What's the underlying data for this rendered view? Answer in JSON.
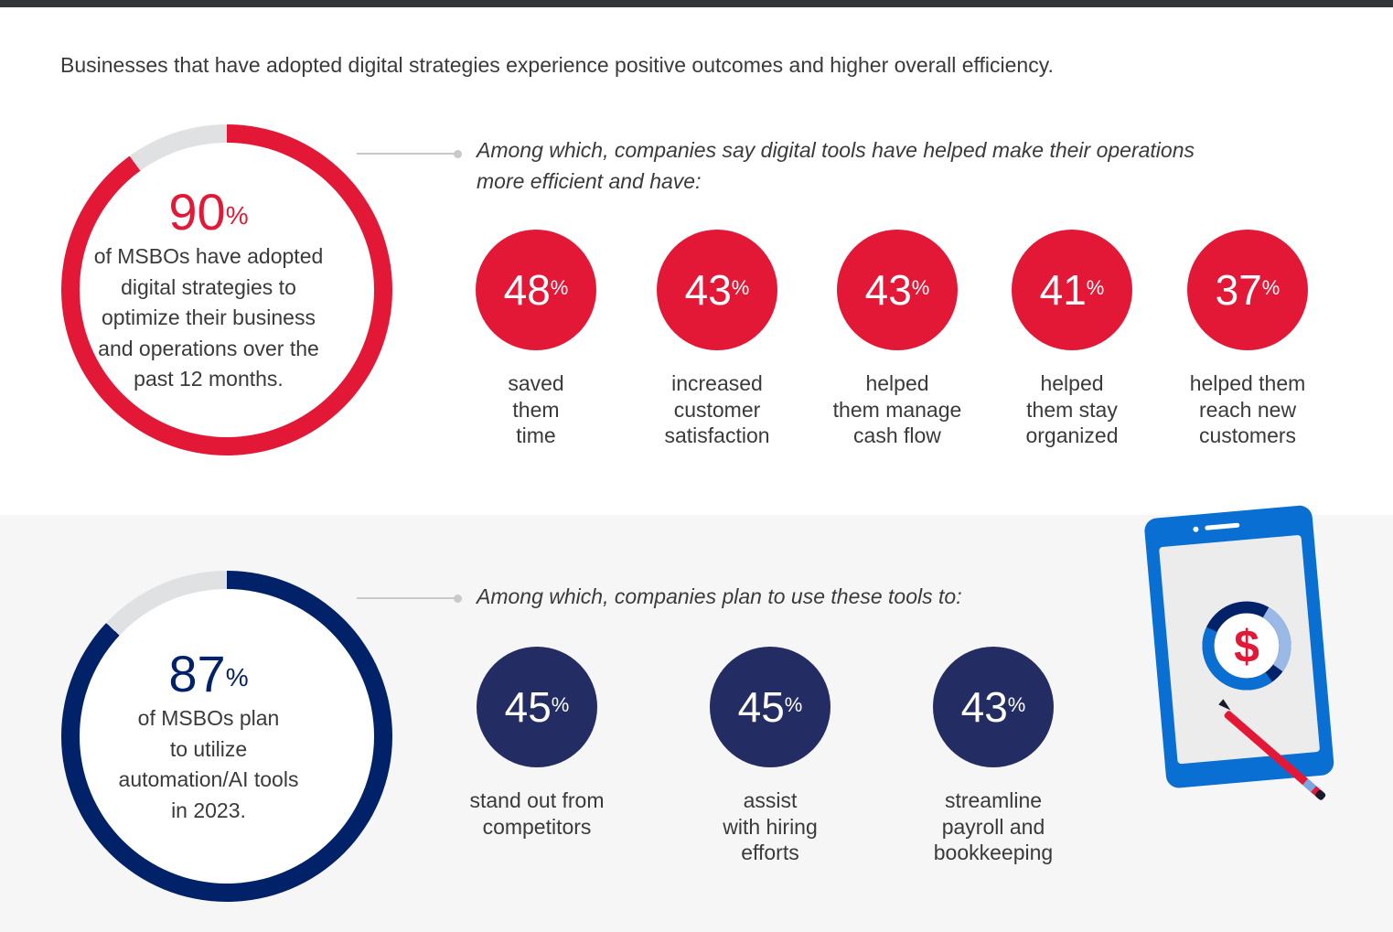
{
  "intro": "Businesses that have adopted digital strategies experience positive outcomes and higher overall efficiency.",
  "colors": {
    "red": "#e31837",
    "navy": "#232d63",
    "ring_navy": "#012169",
    "track": "#e0e1e3"
  },
  "section1": {
    "ring": {
      "value": "90",
      "unit": "%",
      "percent": 90,
      "lines": [
        "of MSBOs have adopted",
        "digital strategies to",
        "optimize their business",
        "and operations over the",
        "past 12 months."
      ]
    },
    "lead_lines": [
      "Among which, companies say digital tools have helped make their operations",
      "more efficient and have:"
    ],
    "stats": [
      {
        "value": "48",
        "unit": "%",
        "lines": [
          "saved",
          "them",
          "time"
        ]
      },
      {
        "value": "43",
        "unit": "%",
        "lines": [
          "increased",
          "customer",
          "satisfaction"
        ]
      },
      {
        "value": "43",
        "unit": "%",
        "lines": [
          "helped",
          "them manage",
          "cash flow"
        ]
      },
      {
        "value": "41",
        "unit": "%",
        "lines": [
          "helped",
          "them stay",
          "organized"
        ]
      },
      {
        "value": "37",
        "unit": "%",
        "lines": [
          "helped them",
          "reach new",
          "customers"
        ]
      }
    ]
  },
  "section2": {
    "ring": {
      "value": "87",
      "unit": "%",
      "percent": 87,
      "lines": [
        "of MSBOs plan",
        "to utilize",
        "automation/AI tools",
        "in 2023."
      ]
    },
    "lead_lines": [
      "Among which, companies plan to use these tools to:"
    ],
    "stats": [
      {
        "value": "45",
        "unit": "%",
        "lines": [
          "stand out from",
          "competitors"
        ]
      },
      {
        "value": "45",
        "unit": "%",
        "lines": [
          "assist",
          "with hiring",
          "efforts"
        ]
      },
      {
        "value": "43",
        "unit": "%",
        "lines": [
          "streamline",
          "payroll and",
          "bookkeeping"
        ]
      }
    ]
  },
  "illustration": {
    "symbol": "$"
  }
}
